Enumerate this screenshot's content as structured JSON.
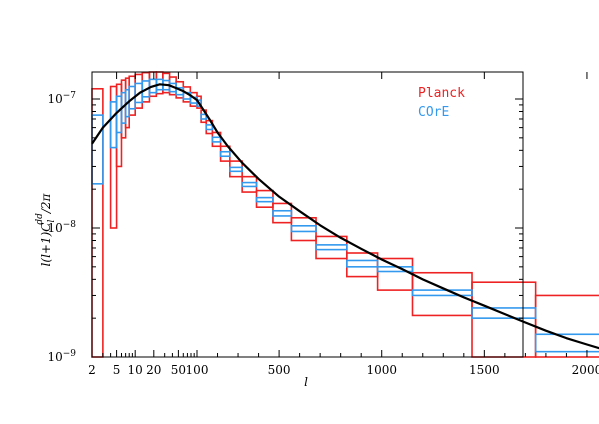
{
  "chart_data": {
    "type": "line",
    "title": "",
    "xlabel": "l",
    "ylabel": "l(l+1)C_l^dd/2π",
    "x_scale": "hybrid (log for l<100, linear above)",
    "y_scale": "log",
    "ylim": [
      1e-09,
      1.4e-07
    ],
    "grid": false,
    "legend_position": "top-right",
    "x_ticks": [
      {
        "value": 2,
        "label": "2"
      },
      {
        "value": 5,
        "label": "5"
      },
      {
        "value": 10,
        "label": "10"
      },
      {
        "value": 20,
        "label": "20"
      },
      {
        "value": 50,
        "label": "50"
      },
      {
        "value": 100,
        "label": "100"
      },
      {
        "value": 500,
        "label": "500"
      },
      {
        "value": 1000,
        "label": "1000"
      },
      {
        "value": 1500,
        "label": "1500"
      },
      {
        "value": 2000,
        "label": "2000"
      }
    ],
    "y_ticks": [
      {
        "value": 1e-09,
        "base": "10",
        "exp": "−9"
      },
      {
        "value": 1e-08,
        "base": "10",
        "exp": "−8"
      },
      {
        "value": 1e-07,
        "base": "10",
        "exp": "−7"
      }
    ],
    "legend": [
      {
        "name": "Planck",
        "color": "#ee2222"
      },
      {
        "name": "COrE",
        "color": "#3399ee"
      }
    ],
    "theory_curve": {
      "color": "#000000",
      "points": [
        [
          2,
          4.5e-08
        ],
        [
          3,
          6e-08
        ],
        [
          5,
          7.8e-08
        ],
        [
          8,
          9.6e-08
        ],
        [
          12,
          1.12e-07
        ],
        [
          18,
          1.24e-07
        ],
        [
          25,
          1.3e-07
        ],
        [
          35,
          1.28e-07
        ],
        [
          45,
          1.22e-07
        ],
        [
          60,
          1.15e-07
        ],
        [
          80,
          1.06e-07
        ],
        [
          100,
          9.8e-08
        ],
        [
          130,
          8.3e-08
        ],
        [
          160,
          7e-08
        ],
        [
          200,
          5.5e-08
        ],
        [
          250,
          4.3e-08
        ],
        [
          320,
          3.2e-08
        ],
        [
          400,
          2.4e-08
        ],
        [
          500,
          1.75e-08
        ],
        [
          600,
          1.35e-08
        ],
        [
          700,
          1.05e-08
        ],
        [
          800,
          8.4e-09
        ],
        [
          900,
          6.9e-09
        ],
        [
          1000,
          5.7e-09
        ],
        [
          1100,
          4.8e-09
        ],
        [
          1200,
          4e-09
        ],
        [
          1300,
          3.4e-09
        ],
        [
          1400,
          2.9e-09
        ],
        [
          1500,
          2.5e-09
        ],
        [
          1600,
          2.15e-09
        ],
        [
          1700,
          1.85e-09
        ],
        [
          1800,
          1.6e-09
        ],
        [
          1900,
          1.4e-09
        ],
        [
          2000,
          1.25e-09
        ],
        [
          2100,
          1.12e-09
        ],
        [
          2200,
          1e-09
        ]
      ]
    },
    "planck_bins": [
      {
        "l_min": 2,
        "l_max": 3,
        "y_low": 1e-09,
        "y_high": 1.2e-07
      },
      {
        "l_min": 4,
        "l_max": 5,
        "y_low": 1e-08,
        "y_high": 1.25e-07
      },
      {
        "l_min": 5,
        "l_max": 6,
        "y_low": 3e-08,
        "y_high": 1.3e-07
      },
      {
        "l_min": 6,
        "l_max": 7,
        "y_low": 5e-08,
        "y_high": 1.4e-07
      },
      {
        "l_min": 7,
        "l_max": 8,
        "y_low": 6e-08,
        "y_high": 1.45e-07
      },
      {
        "l_min": 8,
        "l_max": 10,
        "y_low": 7.5e-08,
        "y_high": 1.5e-07
      },
      {
        "l_min": 10,
        "l_max": 13,
        "y_low": 8.5e-08,
        "y_high": 1.55e-07
      },
      {
        "l_min": 13,
        "l_max": 17,
        "y_low": 9.5e-08,
        "y_high": 1.6e-07
      },
      {
        "l_min": 17,
        "l_max": 22,
        "y_low": 1.05e-07,
        "y_high": 1.62e-07
      },
      {
        "l_min": 22,
        "l_max": 28,
        "y_low": 1.1e-07,
        "y_high": 1.62e-07
      },
      {
        "l_min": 28,
        "l_max": 36,
        "y_low": 1.12e-07,
        "y_high": 1.58e-07
      },
      {
        "l_min": 36,
        "l_max": 46,
        "y_low": 1.08e-07,
        "y_high": 1.48e-07
      },
      {
        "l_min": 46,
        "l_max": 60,
        "y_low": 1.02e-07,
        "y_high": 1.36e-07
      },
      {
        "l_min": 60,
        "l_max": 78,
        "y_low": 9.5e-08,
        "y_high": 1.24e-07
      },
      {
        "l_min": 78,
        "l_max": 100,
        "y_low": 8.8e-08,
        "y_high": 1.12e-07
      },
      {
        "l_min": 100,
        "l_max": 120,
        "y_low": 8.5e-08,
        "y_high": 1.05e-07
      },
      {
        "l_min": 120,
        "l_max": 145,
        "y_low": 6.6e-08,
        "y_high": 8.2e-08
      },
      {
        "l_min": 145,
        "l_max": 175,
        "y_low": 5.4e-08,
        "y_high": 6.8e-08
      },
      {
        "l_min": 175,
        "l_max": 215,
        "y_low": 4.3e-08,
        "y_high": 5.5e-08
      },
      {
        "l_min": 215,
        "l_max": 260,
        "y_low": 3.3e-08,
        "y_high": 4.3e-08
      },
      {
        "l_min": 260,
        "l_max": 320,
        "y_low": 2.5e-08,
        "y_high": 3.3e-08
      },
      {
        "l_min": 320,
        "l_max": 390,
        "y_low": 1.9e-08,
        "y_high": 2.5e-08
      },
      {
        "l_min": 390,
        "l_max": 470,
        "y_low": 1.45e-08,
        "y_high": 1.95e-08
      },
      {
        "l_min": 470,
        "l_max": 560,
        "y_low": 1.1e-08,
        "y_high": 1.55e-08
      },
      {
        "l_min": 560,
        "l_max": 680,
        "y_low": 8e-09,
        "y_high": 1.2e-08
      },
      {
        "l_min": 680,
        "l_max": 830,
        "y_low": 5.8e-09,
        "y_high": 8.6e-09
      },
      {
        "l_min": 830,
        "l_max": 980,
        "y_low": 4.2e-09,
        "y_high": 6.4e-09
      },
      {
        "l_min": 980,
        "l_max": 1150,
        "y_low": 3.3e-09,
        "y_high": 5.8e-09
      },
      {
        "l_min": 1150,
        "l_max": 1440,
        "y_low": 2.1e-09,
        "y_high": 4.5e-09
      },
      {
        "l_min": 1440,
        "l_max": 1750,
        "y_low": 1e-09,
        "y_high": 3.8e-09
      },
      {
        "l_min": 1750,
        "l_max": 2200,
        "y_low": 1e-09,
        "y_high": 3e-09
      }
    ],
    "core_bins": [
      {
        "l_min": 2,
        "l_max": 3,
        "y_low": 2.2e-08,
        "y_high": 7.5e-08
      },
      {
        "l_min": 4,
        "l_max": 5,
        "y_low": 4.2e-08,
        "y_high": 9.5e-08
      },
      {
        "l_min": 5,
        "l_max": 6,
        "y_low": 5.5e-08,
        "y_high": 1.05e-07
      },
      {
        "l_min": 6,
        "l_max": 7,
        "y_low": 6.5e-08,
        "y_high": 1.12e-07
      },
      {
        "l_min": 7,
        "l_max": 8,
        "y_low": 7.3e-08,
        "y_high": 1.18e-07
      },
      {
        "l_min": 8,
        "l_max": 10,
        "y_low": 8.4e-08,
        "y_high": 1.25e-07
      },
      {
        "l_min": 10,
        "l_max": 13,
        "y_low": 9.4e-08,
        "y_high": 1.32e-07
      },
      {
        "l_min": 13,
        "l_max": 17,
        "y_low": 1.04e-07,
        "y_high": 1.38e-07
      },
      {
        "l_min": 17,
        "l_max": 22,
        "y_low": 1.12e-07,
        "y_high": 1.42e-07
      },
      {
        "l_min": 22,
        "l_max": 28,
        "y_low": 1.18e-07,
        "y_high": 1.42e-07
      },
      {
        "l_min": 28,
        "l_max": 36,
        "y_low": 1.18e-07,
        "y_high": 1.39e-07
      },
      {
        "l_min": 36,
        "l_max": 46,
        "y_low": 1.14e-07,
        "y_high": 1.32e-07
      },
      {
        "l_min": 46,
        "l_max": 60,
        "y_low": 1.08e-07,
        "y_high": 1.22e-07
      },
      {
        "l_min": 60,
        "l_max": 78,
        "y_low": 1e-07,
        "y_high": 1.12e-07
      },
      {
        "l_min": 78,
        "l_max": 100,
        "y_low": 9.3e-08,
        "y_high": 1.03e-07
      },
      {
        "l_min": 100,
        "l_max": 120,
        "y_low": 8.8e-08,
        "y_high": 9.8e-08
      },
      {
        "l_min": 120,
        "l_max": 145,
        "y_low": 7e-08,
        "y_high": 7.6e-08
      },
      {
        "l_min": 145,
        "l_max": 175,
        "y_low": 5.8e-08,
        "y_high": 6.3e-08
      },
      {
        "l_min": 175,
        "l_max": 215,
        "y_low": 4.65e-08,
        "y_high": 5.05e-08
      },
      {
        "l_min": 215,
        "l_max": 260,
        "y_low": 3.6e-08,
        "y_high": 3.9e-08
      },
      {
        "l_min": 260,
        "l_max": 320,
        "y_low": 2.75e-08,
        "y_high": 2.95e-08
      },
      {
        "l_min": 320,
        "l_max": 390,
        "y_low": 2.1e-08,
        "y_high": 2.25e-08
      },
      {
        "l_min": 390,
        "l_max": 470,
        "y_low": 1.6e-08,
        "y_high": 1.72e-08
      },
      {
        "l_min": 470,
        "l_max": 560,
        "y_low": 1.24e-08,
        "y_high": 1.36e-08
      },
      {
        "l_min": 560,
        "l_max": 680,
        "y_low": 9.4e-09,
        "y_high": 1.04e-08
      },
      {
        "l_min": 680,
        "l_max": 830,
        "y_low": 6.8e-09,
        "y_high": 7.4e-09
      },
      {
        "l_min": 830,
        "l_max": 980,
        "y_low": 5e-09,
        "y_high": 5.6e-09
      },
      {
        "l_min": 980,
        "l_max": 1150,
        "y_low": 4.6e-09,
        "y_high": 5e-09
      },
      {
        "l_min": 1150,
        "l_max": 1440,
        "y_low": 3e-09,
        "y_high": 3.3e-09
      },
      {
        "l_min": 1440,
        "l_max": 1750,
        "y_low": 2e-09,
        "y_high": 2.4e-09
      },
      {
        "l_min": 1750,
        "l_max": 2200,
        "y_low": 1.1e-09,
        "y_high": 1.5e-09
      }
    ]
  }
}
